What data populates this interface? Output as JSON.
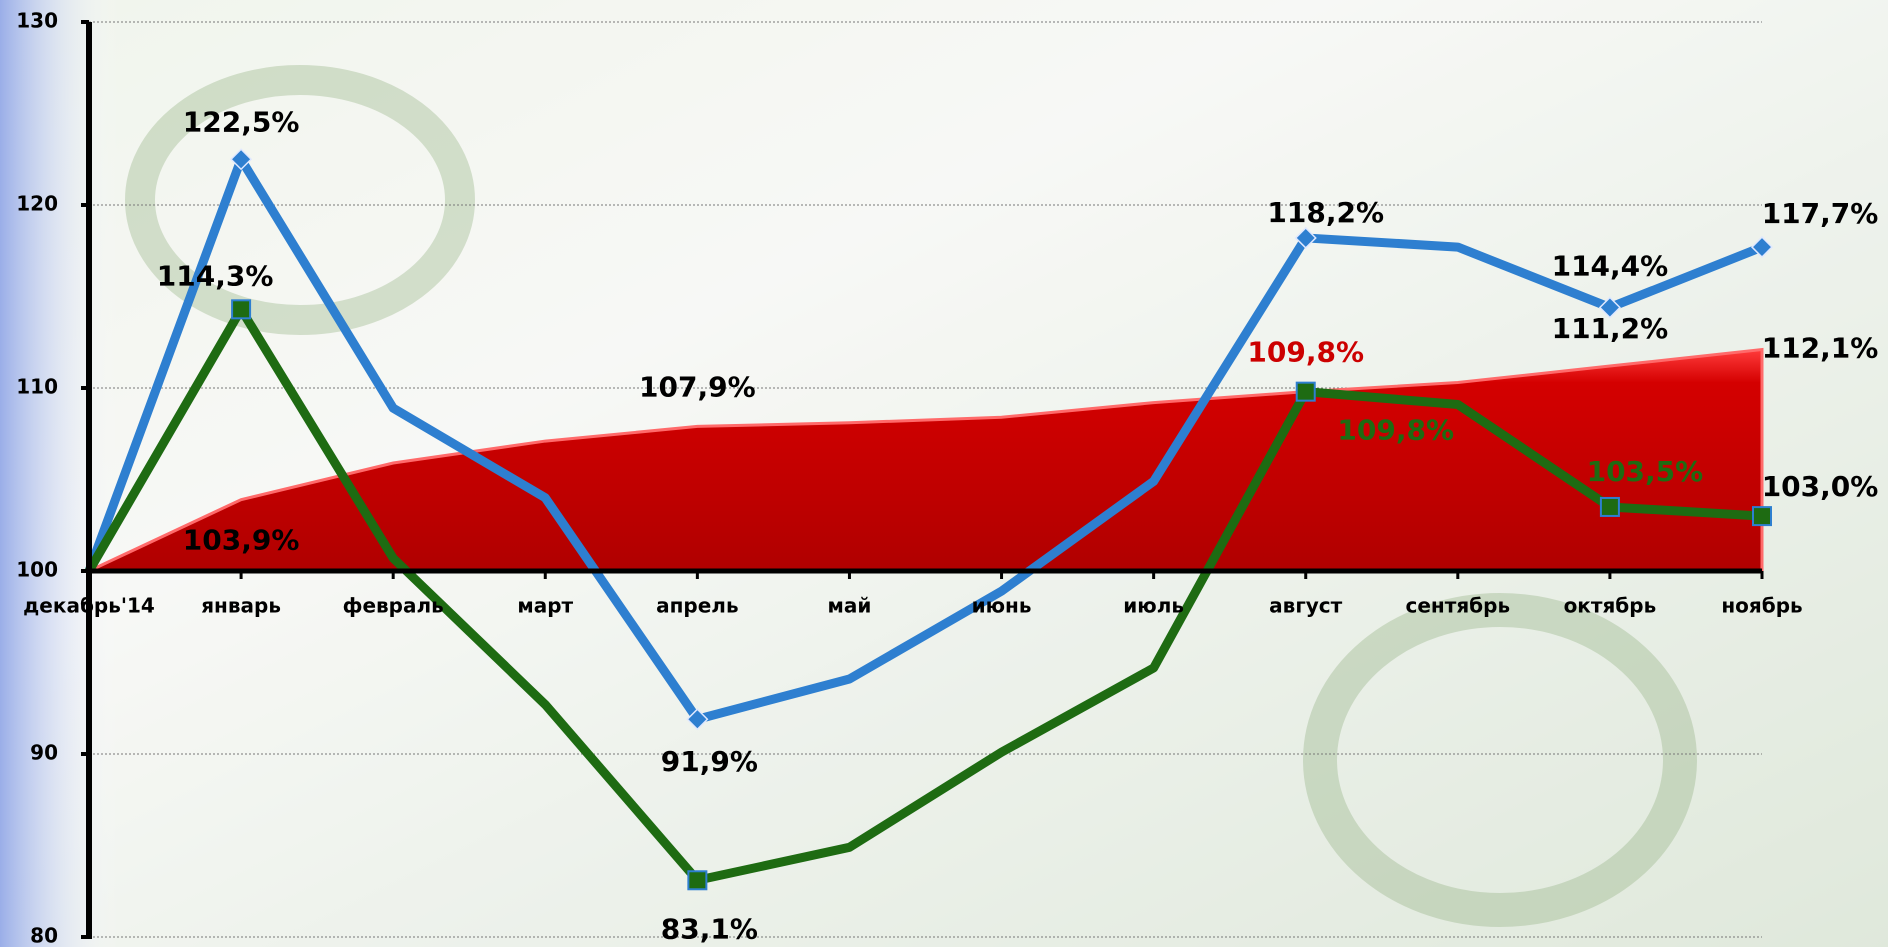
{
  "chart_data": {
    "type": "line",
    "categories": [
      "декабрь'14",
      "январь",
      "февраль",
      "март",
      "апрель",
      "май",
      "июнь",
      "июль",
      "август",
      "сентябрь",
      "октябрь",
      "ноябрь"
    ],
    "series": [
      {
        "color": "#cc0000",
        "style": "area",
        "values": [
          100,
          103.9,
          105.9,
          107.1,
          107.9,
          108.1,
          108.4,
          109.2,
          109.8,
          110.3,
          111.2,
          112.1
        ],
        "value_labels": [
          null,
          "103,9%",
          null,
          null,
          "107,9%",
          null,
          null,
          null,
          "109,8%",
          null,
          "111,2%",
          "112,1%"
        ]
      },
      {
        "color": "#2e7fd0",
        "style": "line",
        "marker": "diamond",
        "values": [
          100,
          122.5,
          108.9,
          104.0,
          91.9,
          94.1,
          98.9,
          104.9,
          118.2,
          117.7,
          114.4,
          117.7
        ],
        "value_labels": [
          null,
          "122,5%",
          null,
          null,
          "91,9%",
          null,
          null,
          null,
          "118,2%",
          null,
          "114,4%",
          "117,7%"
        ]
      },
      {
        "color": "#1e6b12",
        "style": "line",
        "marker": "square",
        "values": [
          100,
          114.3,
          100.7,
          92.7,
          83.1,
          84.9,
          90.1,
          94.7,
          109.8,
          109.1,
          103.5,
          103.0
        ],
        "value_labels": [
          null,
          "114,3%",
          null,
          null,
          "83,1%",
          null,
          null,
          null,
          "109,8%",
          null,
          "103,5%",
          "103,0%"
        ]
      }
    ],
    "ylim": [
      80,
      130
    ],
    "yticks": [
      80,
      90,
      100,
      110,
      120,
      130
    ],
    "grid": true
  }
}
